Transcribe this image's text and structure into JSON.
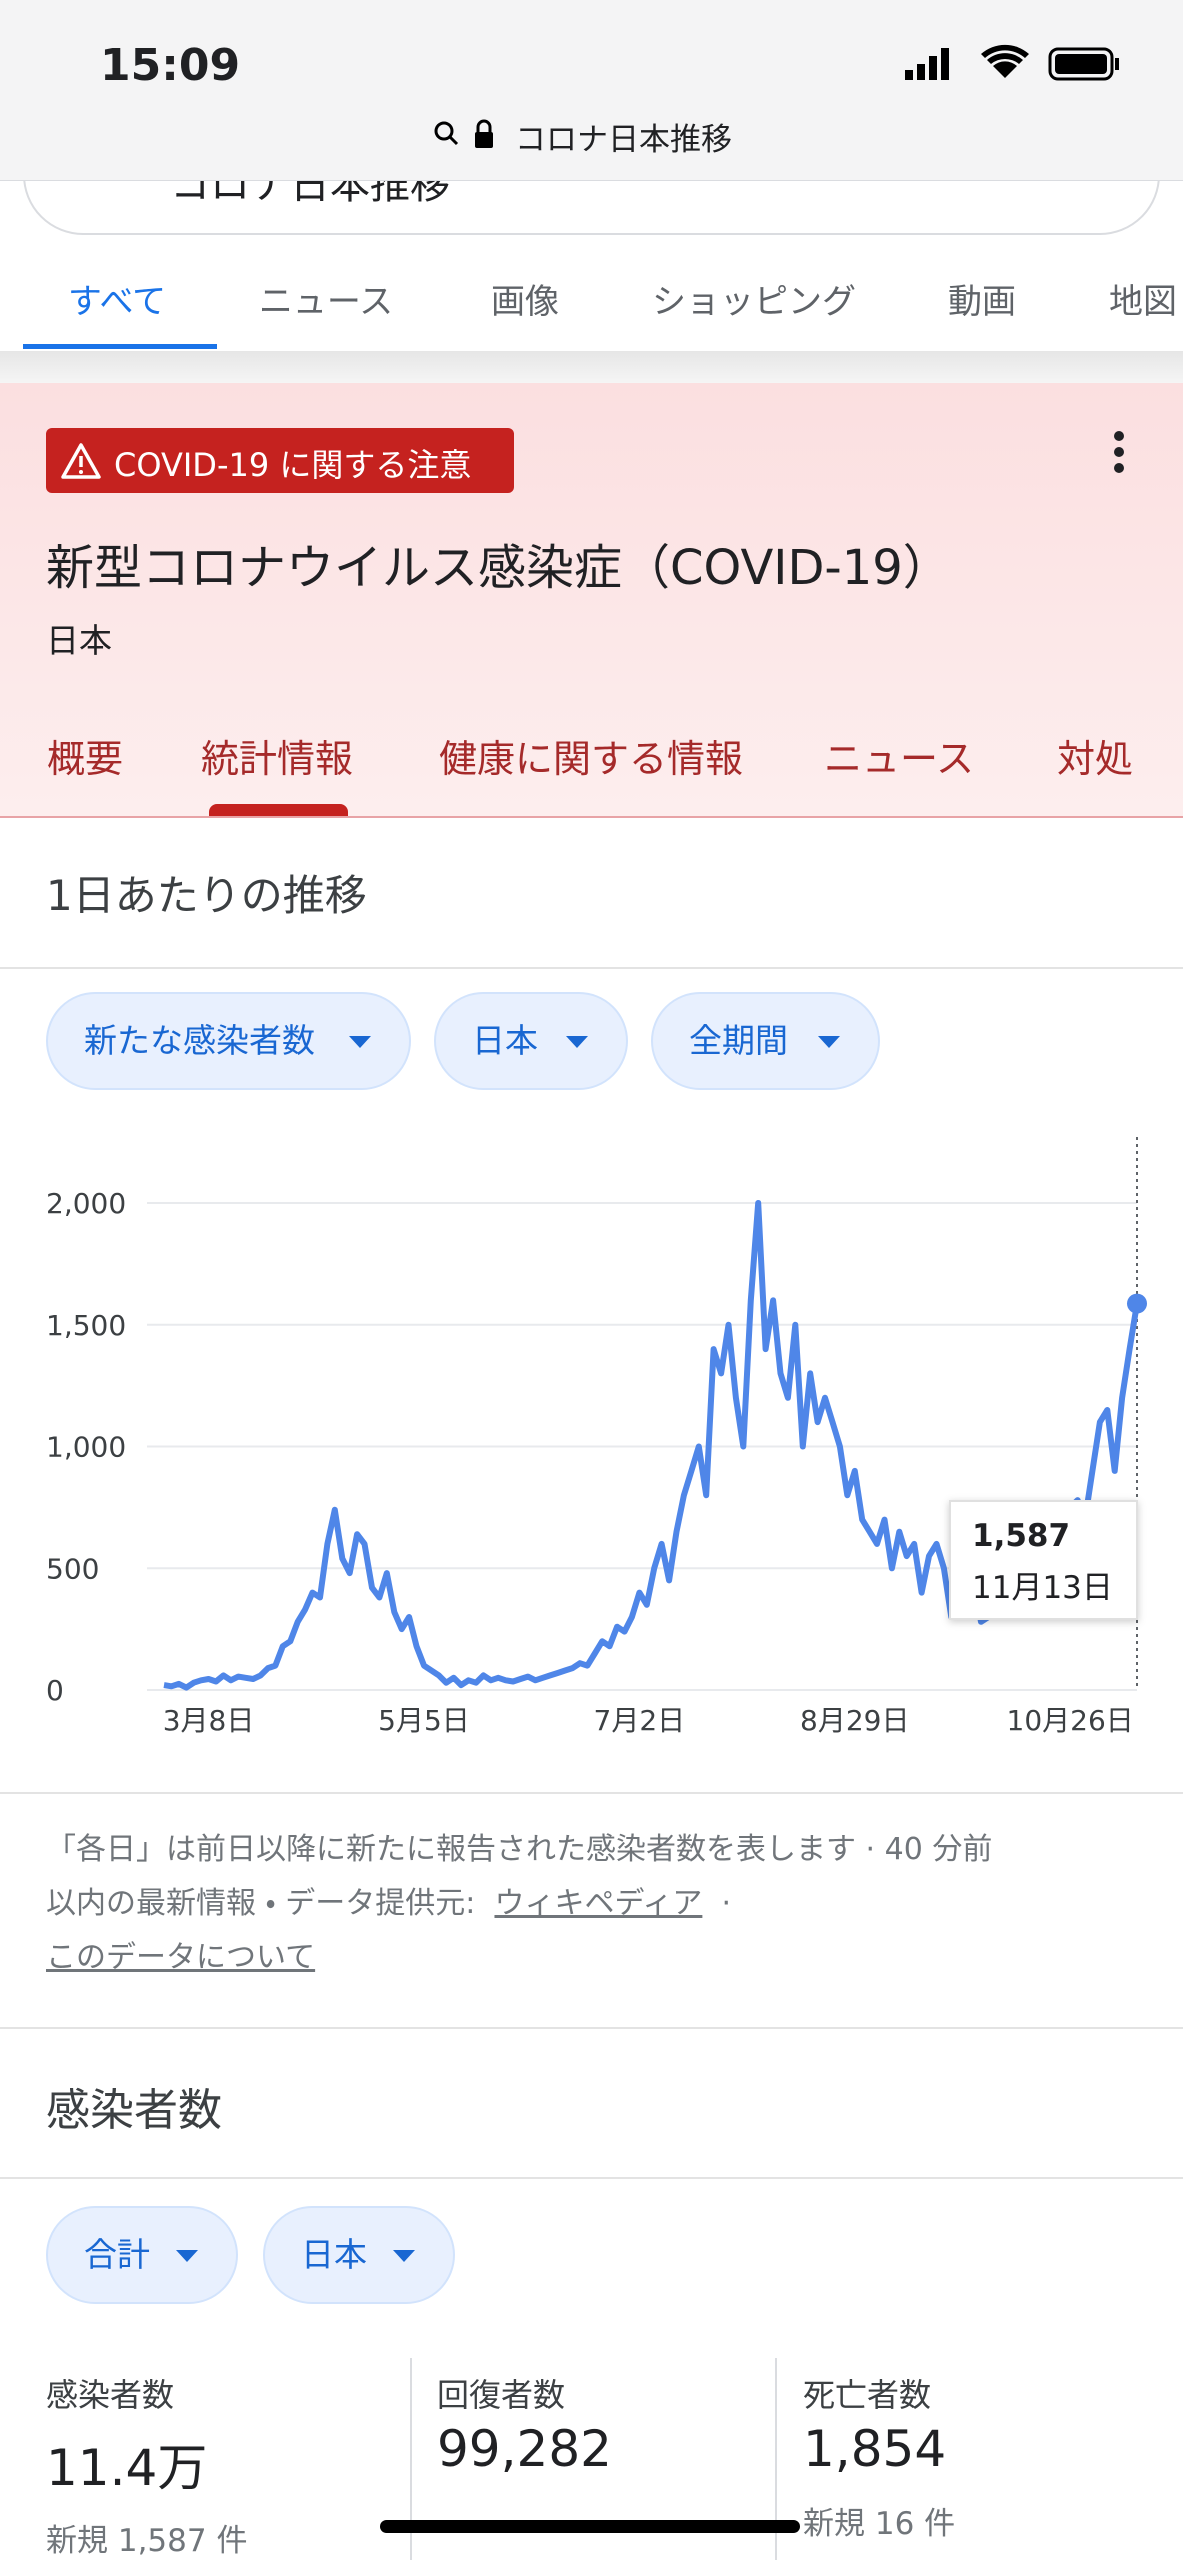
{
  "status_bar": {
    "time": "15:09",
    "url": "コロナ日本推移"
  },
  "search": {
    "query": "コロナ日本推移"
  },
  "tabs": [
    "すべて",
    "ニュース",
    "画像",
    "ショッピング",
    "動画",
    "地図"
  ],
  "card": {
    "alert": "COVID-19 に関する注意",
    "title": "新型コロナウイルス感染症（COVID-19）",
    "region": "日本",
    "tabs": [
      "概要",
      "統計情報",
      "健康に関する情報",
      "ニュース",
      "対処"
    ]
  },
  "daily": {
    "heading": "1日あたりの推移",
    "filters": [
      "新たな感染者数",
      "日本",
      "全期間"
    ]
  },
  "chart_data": {
    "type": "line",
    "categories": [
      null,
      null,
      null,
      null,
      null,
      null,
      "3月8日",
      null,
      null,
      null,
      null,
      null,
      null,
      null,
      null,
      null,
      null,
      null,
      null,
      null,
      null,
      null,
      null,
      null,
      null,
      null,
      null,
      null,
      null,
      null,
      null,
      null,
      null,
      null,
      null,
      "5月5日",
      null,
      null,
      null,
      null,
      null,
      null,
      null,
      null,
      null,
      null,
      null,
      null,
      null,
      null,
      null,
      null,
      null,
      null,
      null,
      null,
      null,
      null,
      null,
      null,
      null,
      null,
      null,
      null,
      "7月2日",
      null,
      null,
      null,
      null,
      null,
      null,
      null,
      null,
      null,
      null,
      null,
      null,
      null,
      null,
      null,
      null,
      null,
      null,
      null,
      null,
      null,
      null,
      null,
      null,
      null,
      null,
      null,
      null,
      "8月29日",
      null,
      null,
      null,
      null,
      null,
      null,
      null,
      null,
      null,
      null,
      null,
      null,
      null,
      null,
      null,
      null,
      null,
      null,
      null,
      null,
      null,
      null,
      null,
      null,
      null,
      null,
      null,
      null,
      "10月26日",
      null,
      null,
      null,
      null,
      null,
      null,
      null,
      null,
      null
    ],
    "series": [
      {
        "name": "新たな感染者数",
        "color": "#4f86e8",
        "values": [
          20,
          15,
          25,
          10,
          30,
          40,
          45,
          35,
          60,
          40,
          55,
          50,
          45,
          60,
          90,
          100,
          180,
          200,
          280,
          330,
          400,
          380,
          600,
          740,
          540,
          480,
          640,
          600,
          420,
          380,
          480,
          320,
          250,
          300,
          180,
          100,
          80,
          60,
          30,
          50,
          20,
          40,
          30,
          60,
          40,
          50,
          40,
          35,
          45,
          55,
          40,
          50,
          60,
          70,
          80,
          90,
          110,
          100,
          150,
          200,
          180,
          260,
          240,
          300,
          400,
          350,
          500,
          600,
          450,
          650,
          800,
          900,
          1000,
          800,
          1400,
          1300,
          1500,
          1200,
          1000,
          1600,
          2000,
          1400,
          1600,
          1300,
          1200,
          1500,
          1000,
          1300,
          1100,
          1200,
          1100,
          1000,
          800,
          900,
          700,
          650,
          600,
          700,
          500,
          650,
          550,
          600,
          400,
          550,
          600,
          500,
          300,
          550,
          500,
          450,
          280,
          300,
          320,
          400,
          350,
          380,
          420,
          500,
          600,
          700,
          650,
          550,
          750,
          780,
          700,
          900,
          1100,
          1150,
          900,
          1200,
          1400,
          1587
        ]
      }
    ],
    "ylim": [
      0,
      2000
    ],
    "yticks": [
      0,
      500,
      {
        "value": 1000,
        "label": "1,000"
      },
      {
        "value": 1500,
        "label": "1,500"
      },
      {
        "value": 2000,
        "label": "2,000"
      }
    ],
    "grid": true,
    "tooltip": {
      "value": 1587,
      "label": "1,587",
      "category": "11月13日"
    }
  },
  "footer": {
    "line1": "「各日」は前日以降に新たに報告された感染者数を表します · 40 分前",
    "line2": "以内の最新情報 ・ データ提供元:",
    "link1": "ウィキペディア",
    "sep": "·",
    "link2": "このデータについて"
  },
  "cases": {
    "heading": "感染者数",
    "filters": [
      "合計",
      "日本"
    ],
    "stats": [
      {
        "label": "感染者数",
        "value": "11.4万",
        "note": "新規 1,587 件"
      },
      {
        "label": "回復者数",
        "value": "99,282"
      },
      {
        "label": "死亡者数",
        "value": "1,854",
        "note": "新規 16 件"
      }
    ]
  }
}
